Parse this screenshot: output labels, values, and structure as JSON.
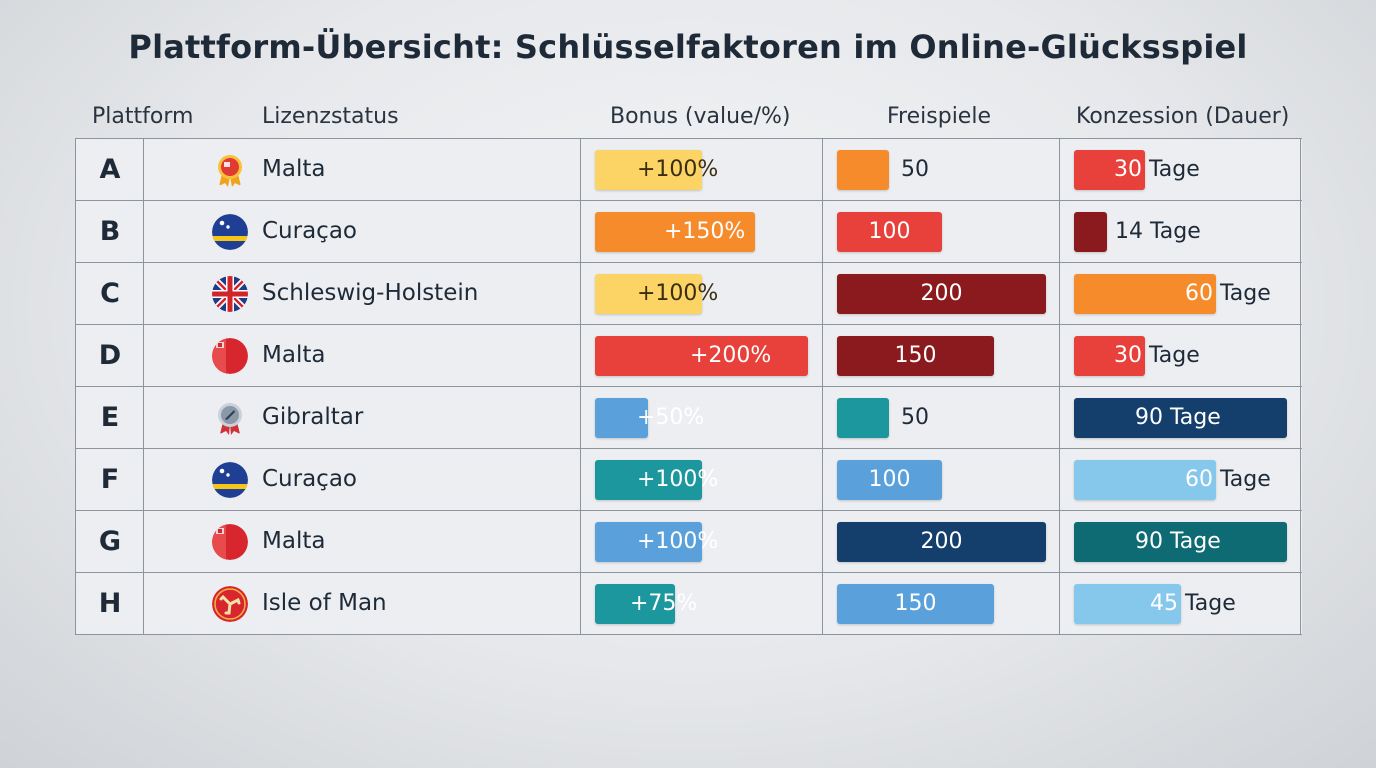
{
  "title": "Plattform-Übersicht: Schlüsselfaktoren im Online-Glücksspiel",
  "columns": {
    "platform": "Plattform",
    "license": "Lizenzstatus",
    "bonus": "Bonus (value/%)",
    "freespins": "Freispiele",
    "concession": "Konzession (Dauer)"
  },
  "colors": {
    "yellow": "#fbd465",
    "orange": "#f68b2c",
    "red": "#e8403a",
    "darkred": "#8a1a1e",
    "lightblue": "#5aa1dc",
    "skyblue": "#86c8ec",
    "teal": "#1c979e",
    "darkteal": "#0f6b73",
    "navy": "#143f6c"
  },
  "chart_data": {
    "type": "table",
    "title": "Plattform-Übersicht: Schlüsselfaktoren im Online-Glücksspiel",
    "rows": [
      {
        "platform": "A",
        "license": "Malta",
        "icon": "malta-award-icon",
        "bonus": "+100%",
        "bonus_value": 100,
        "bonus_color": "yellow",
        "freespins": "50",
        "freespins_value": 50,
        "freespins_color": "orange",
        "concession_num": "30",
        "concession_unit": "Tage",
        "concession_value": 30,
        "concession_color": "red"
      },
      {
        "platform": "B",
        "license": "Curaçao",
        "icon": "curacao-flag-icon",
        "bonus": "+150%",
        "bonus_value": 150,
        "bonus_color": "orange",
        "freespins": "100",
        "freespins_value": 100,
        "freespins_color": "red",
        "concession_num": "14",
        "concession_unit": "Tage",
        "concession_value": 14,
        "concession_color": "darkred"
      },
      {
        "platform": "C",
        "license": "Schleswig-Holstein",
        "icon": "schleswig-holstein-flag-icon",
        "bonus": "+100%",
        "bonus_value": 100,
        "bonus_color": "yellow",
        "freespins": "200",
        "freespins_value": 200,
        "freespins_color": "darkred",
        "concession_num": "60",
        "concession_unit": "Tage",
        "concession_value": 60,
        "concession_color": "orange"
      },
      {
        "platform": "D",
        "license": "Malta",
        "icon": "malta-flag-icon",
        "bonus": "+200%",
        "bonus_value": 200,
        "bonus_color": "red",
        "freespins": "150",
        "freespins_value": 150,
        "freespins_color": "darkred",
        "concession_num": "30",
        "concession_unit": "Tage",
        "concession_value": 30,
        "concession_color": "red"
      },
      {
        "platform": "E",
        "license": "Gibraltar",
        "icon": "gibraltar-award-icon",
        "bonus": "+50%",
        "bonus_value": 50,
        "bonus_color": "lightblue",
        "freespins": "50",
        "freespins_value": 50,
        "freespins_color": "teal",
        "concession_num": "90",
        "concession_unit": "Tage",
        "concession_value": 90,
        "concession_color": "navy"
      },
      {
        "platform": "F",
        "license": "Curaçao",
        "icon": "curacao-flag-icon",
        "bonus": "+100%",
        "bonus_value": 100,
        "bonus_color": "teal",
        "freespins": "100",
        "freespins_value": 100,
        "freespins_color": "lightblue",
        "concession_num": "60",
        "concession_unit": "Tage",
        "concession_value": 60,
        "concession_color": "skyblue"
      },
      {
        "platform": "G",
        "license": "Malta",
        "icon": "malta-flag-icon",
        "bonus": "+100%",
        "bonus_value": 100,
        "bonus_color": "lightblue",
        "freespins": "200",
        "freespins_value": 200,
        "freespins_color": "navy",
        "concession_num": "90",
        "concession_unit": "Tage",
        "concession_value": 90,
        "concession_color": "darkteal"
      },
      {
        "platform": "H",
        "license": "Isle of Man",
        "icon": "isle-of-man-flag-icon",
        "bonus": "+75%",
        "bonus_value": 75,
        "bonus_color": "teal",
        "freespins": "150",
        "freespins_value": 150,
        "freespins_color": "lightblue",
        "concession_num": "45",
        "concession_unit": "Tage",
        "concession_value": 45,
        "concession_color": "skyblue"
      }
    ]
  }
}
